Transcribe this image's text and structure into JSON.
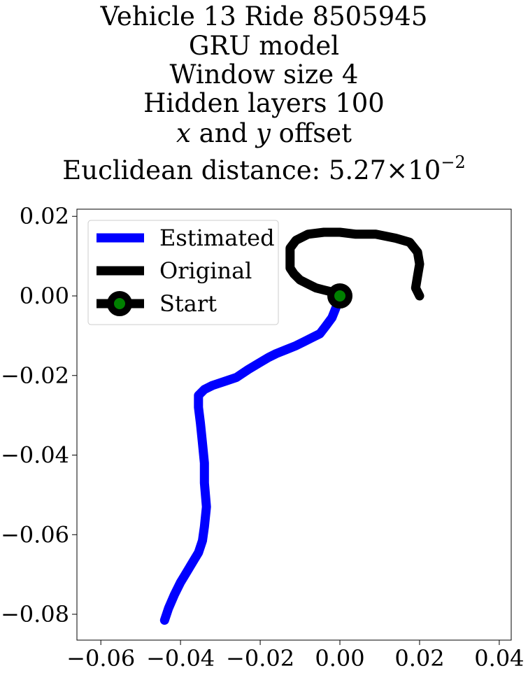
{
  "chart_data": {
    "type": "line",
    "title_lines": {
      "line1": "Vehicle 13 Ride 8505945",
      "line2": "GRU model",
      "line3": "Window size 4",
      "line4": "Hidden layers 100",
      "line5_x": "x",
      "line5_and": " and ",
      "line5_y": "y",
      "line5_rest": " offset",
      "line6_prefix": "Euclidean distance: 5.27",
      "line6_times": "×",
      "line6_base": "10",
      "line6_exp": "−2"
    },
    "xlabel": "",
    "ylabel": "",
    "xlim": [
      -0.066,
      0.043
    ],
    "ylim": [
      -0.0865,
      0.0218
    ],
    "xticks": [
      -0.06,
      -0.04,
      -0.02,
      0.0,
      0.02,
      0.04
    ],
    "xtick_labels": [
      "−0.06",
      "−0.04",
      "−0.02",
      "0.00",
      "0.02",
      "0.04"
    ],
    "yticks": [
      0.02,
      0.0,
      -0.02,
      -0.04,
      -0.06,
      -0.08
    ],
    "ytick_labels": [
      "0.02",
      "0.00",
      "−0.02",
      "−0.04",
      "−0.06",
      "−0.08"
    ],
    "grid": false,
    "legend_position": "top-left",
    "series": [
      {
        "name": "Estimated",
        "color": "#0000ff",
        "x": [
          0.0,
          -0.001,
          -0.002,
          -0.0035,
          -0.005,
          -0.007,
          -0.009,
          -0.011,
          -0.0135,
          -0.016,
          -0.018,
          -0.0205,
          -0.023,
          -0.026,
          -0.029,
          -0.032,
          -0.034,
          -0.0355,
          -0.0355,
          -0.035,
          -0.0345,
          -0.034,
          -0.034,
          -0.0335,
          -0.034,
          -0.0345,
          -0.0355,
          -0.037,
          -0.0385,
          -0.04,
          -0.0415,
          -0.043,
          -0.044
        ],
        "y": [
          0.0,
          -0.003,
          -0.0055,
          -0.0075,
          -0.0095,
          -0.0105,
          -0.0115,
          -0.0125,
          -0.0135,
          -0.0145,
          -0.0155,
          -0.017,
          -0.0185,
          -0.0205,
          -0.0215,
          -0.0225,
          -0.0235,
          -0.025,
          -0.028,
          -0.032,
          -0.037,
          -0.042,
          -0.047,
          -0.053,
          -0.058,
          -0.0615,
          -0.0645,
          -0.067,
          -0.0695,
          -0.072,
          -0.075,
          -0.0785,
          -0.0815
        ]
      },
      {
        "name": "Original",
        "color": "#000000",
        "x": [
          0.0,
          -0.002,
          -0.004,
          -0.006,
          -0.008,
          -0.01,
          -0.0115,
          -0.0125,
          -0.0125,
          -0.0125,
          -0.0125,
          -0.011,
          -0.008,
          -0.004,
          0.0,
          0.004,
          0.009,
          0.014,
          0.0175,
          0.0195,
          0.02,
          0.0195,
          0.019,
          0.02
        ],
        "y": [
          0.0,
          0.001,
          0.0015,
          0.002,
          0.003,
          0.004,
          0.0055,
          0.007,
          0.0085,
          0.01,
          0.012,
          0.014,
          0.0155,
          0.016,
          0.016,
          0.0155,
          0.0155,
          0.0145,
          0.0135,
          0.011,
          0.008,
          0.005,
          0.002,
          0.0
        ]
      }
    ],
    "start_point": {
      "name": "Start",
      "x": 0.0,
      "y": 0.0,
      "edge_color": "#000000",
      "face_color": "#008000"
    }
  }
}
